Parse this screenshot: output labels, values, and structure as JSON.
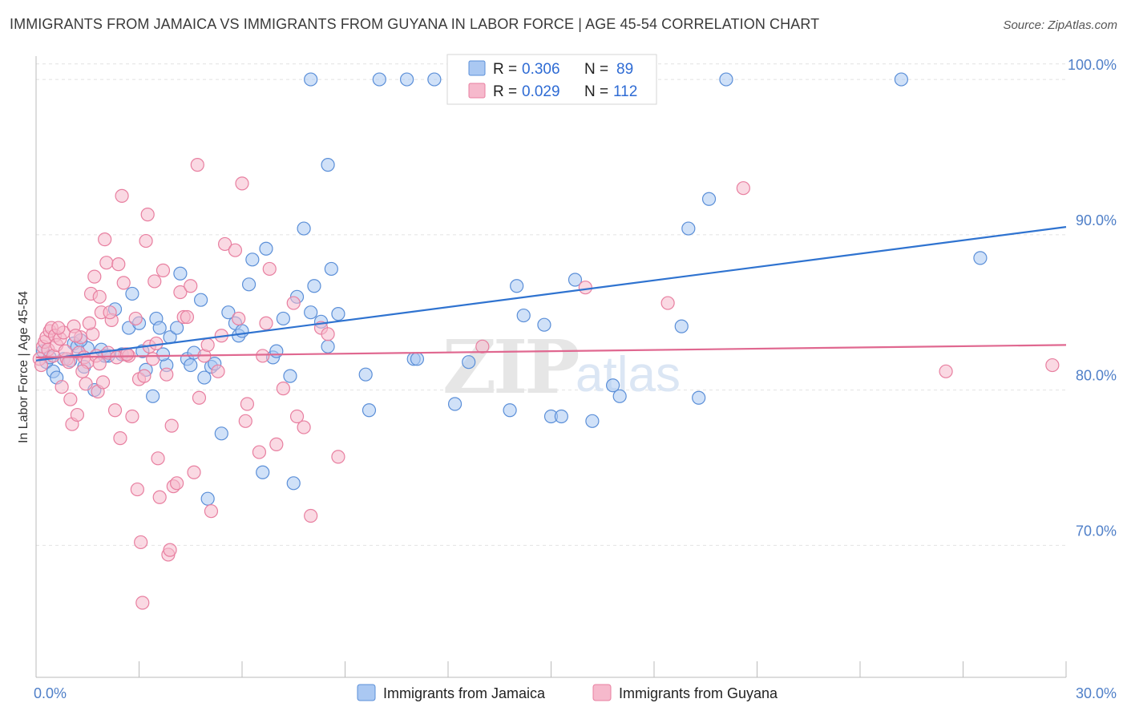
{
  "title": "IMMIGRANTS FROM JAMAICA VS IMMIGRANTS FROM GUYANA IN LABOR FORCE | AGE 45-54 CORRELATION CHART",
  "source": "Source: ZipAtlas.com",
  "watermark": {
    "zip": "ZIP",
    "atlas": "atlas"
  },
  "colors": {
    "jamaica_fill": "#aac8f2",
    "jamaica_stroke": "#5b8fd8",
    "jamaica_line": "#2f73d0",
    "guyana_fill": "#f6b9cc",
    "guyana_stroke": "#e87fa0",
    "guyana_line": "#e06890",
    "tick_text": "#4f7fc8",
    "grid": "#e2e2e2"
  },
  "legend": {
    "rows": [
      {
        "r_label": "R =",
        "r_value": "0.306",
        "n_label": "N =",
        "n_value": "89"
      },
      {
        "r_label": "R =",
        "r_value": "0.029",
        "n_label": "N =",
        "n_value": "112"
      }
    ]
  },
  "chart_data": {
    "type": "scatter",
    "title": "IMMIGRANTS FROM JAMAICA VS IMMIGRANTS FROM GUYANA IN LABOR FORCE | AGE 45-54 CORRELATION CHART",
    "xlabel": "",
    "ylabel": "In Labor Force | Age 45-54",
    "xlim": [
      0,
      30
    ],
    "ylim": [
      61.5,
      101.5
    ],
    "x_tick_labels": [
      "0.0%",
      "30.0%"
    ],
    "y_ticks": [
      70,
      80,
      90,
      100
    ],
    "y_tick_labels": [
      "70.0%",
      "80.0%",
      "90.0%",
      "100.0%"
    ],
    "grid": true,
    "legend_placement": "top-center",
    "series": [
      {
        "name": "Immigrants from Jamaica",
        "trend": {
          "x": [
            0,
            30
          ],
          "y": [
            81.9,
            90.5
          ]
        },
        "points": [
          [
            0.2,
            82.5
          ],
          [
            0.3,
            81.8
          ],
          [
            0.4,
            82.1
          ],
          [
            0.5,
            81.2
          ],
          [
            0.6,
            80.8
          ],
          [
            0.8,
            82.0
          ],
          [
            1.0,
            81.9
          ],
          [
            1.1,
            83.0
          ],
          [
            1.2,
            82.8
          ],
          [
            1.4,
            81.5
          ],
          [
            1.5,
            82.7
          ],
          [
            1.7,
            80.0
          ],
          [
            1.9,
            82.6
          ],
          [
            2.1,
            82.2
          ],
          [
            2.3,
            85.2
          ],
          [
            2.5,
            82.3
          ],
          [
            2.7,
            84.0
          ],
          [
            2.8,
            86.2
          ],
          [
            3.0,
            84.3
          ],
          [
            3.1,
            82.5
          ],
          [
            3.2,
            81.3
          ],
          [
            3.4,
            79.6
          ],
          [
            3.5,
            84.6
          ],
          [
            3.6,
            84.0
          ],
          [
            3.8,
            81.6
          ],
          [
            3.9,
            83.4
          ],
          [
            4.1,
            84.0
          ],
          [
            4.2,
            87.5
          ],
          [
            4.4,
            82.0
          ],
          [
            4.5,
            81.6
          ],
          [
            4.6,
            82.4
          ],
          [
            4.8,
            85.8
          ],
          [
            4.9,
            80.8
          ],
          [
            5.1,
            81.5
          ],
          [
            5.2,
            81.7
          ],
          [
            5.4,
            77.2
          ],
          [
            5.6,
            85.0
          ],
          [
            5.8,
            84.3
          ],
          [
            5.9,
            83.5
          ],
          [
            6.0,
            83.8
          ],
          [
            6.2,
            86.8
          ],
          [
            6.3,
            88.4
          ],
          [
            6.6,
            74.7
          ],
          [
            6.7,
            89.1
          ],
          [
            6.9,
            82.1
          ],
          [
            7.0,
            82.5
          ],
          [
            7.2,
            84.6
          ],
          [
            7.4,
            80.9
          ],
          [
            7.5,
            74.0
          ],
          [
            7.6,
            86.0
          ],
          [
            7.8,
            90.4
          ],
          [
            8.0,
            85.0
          ],
          [
            8.1,
            86.7
          ],
          [
            8.3,
            84.4
          ],
          [
            8.5,
            82.8
          ],
          [
            8.6,
            87.8
          ],
          [
            8.8,
            84.9
          ],
          [
            8.5,
            94.5
          ],
          [
            8.0,
            100.0
          ],
          [
            9.6,
            81.0
          ],
          [
            9.7,
            78.7
          ],
          [
            10.0,
            100.0
          ],
          [
            10.8,
            100.0
          ],
          [
            11.6,
            100.0
          ],
          [
            11.0,
            82.0
          ],
          [
            11.1,
            82.0
          ],
          [
            12.2,
            79.1
          ],
          [
            12.6,
            81.8
          ],
          [
            13.8,
            78.7
          ],
          [
            14.0,
            86.7
          ],
          [
            14.2,
            84.8
          ],
          [
            14.8,
            84.2
          ],
          [
            15.0,
            78.3
          ],
          [
            15.3,
            78.3
          ],
          [
            15.7,
            87.1
          ],
          [
            16.2,
            78.0
          ],
          [
            16.8,
            80.3
          ],
          [
            17.0,
            79.6
          ],
          [
            18.8,
            84.1
          ],
          [
            19.0,
            90.4
          ],
          [
            19.3,
            79.5
          ],
          [
            19.6,
            92.3
          ],
          [
            20.1,
            100.0
          ],
          [
            25.2,
            100.0
          ],
          [
            27.5,
            88.5
          ],
          [
            1.3,
            83.2
          ],
          [
            2.0,
            82.2
          ],
          [
            3.7,
            82.3
          ],
          [
            5.0,
            73.0
          ]
        ]
      },
      {
        "name": "Immigrants from Guyana",
        "trend": {
          "x": [
            0,
            30
          ],
          "y": [
            82.1,
            82.9
          ]
        },
        "points": [
          [
            0.1,
            82.0
          ],
          [
            0.15,
            81.6
          ],
          [
            0.2,
            82.8
          ],
          [
            0.25,
            83.1
          ],
          [
            0.3,
            83.4
          ],
          [
            0.35,
            82.6
          ],
          [
            0.4,
            83.8
          ],
          [
            0.45,
            84.0
          ],
          [
            0.5,
            82.2
          ],
          [
            0.55,
            83.5
          ],
          [
            0.6,
            82.9
          ],
          [
            0.7,
            83.3
          ],
          [
            0.75,
            80.2
          ],
          [
            0.8,
            83.7
          ],
          [
            0.9,
            82.0
          ],
          [
            1.0,
            79.4
          ],
          [
            1.05,
            77.8
          ],
          [
            1.1,
            84.1
          ],
          [
            1.2,
            78.4
          ],
          [
            1.25,
            82.4
          ],
          [
            1.3,
            83.4
          ],
          [
            1.4,
            82.1
          ],
          [
            1.45,
            80.4
          ],
          [
            1.5,
            81.8
          ],
          [
            1.6,
            86.2
          ],
          [
            1.65,
            83.6
          ],
          [
            1.7,
            87.3
          ],
          [
            1.75,
            82.2
          ],
          [
            1.8,
            79.9
          ],
          [
            1.85,
            81.7
          ],
          [
            1.9,
            85.0
          ],
          [
            1.95,
            80.5
          ],
          [
            2.0,
            89.7
          ],
          [
            2.05,
            88.2
          ],
          [
            2.1,
            82.4
          ],
          [
            2.2,
            84.5
          ],
          [
            2.3,
            78.7
          ],
          [
            2.4,
            88.1
          ],
          [
            2.45,
            76.9
          ],
          [
            2.5,
            92.5
          ],
          [
            2.6,
            82.3
          ],
          [
            2.7,
            82.2
          ],
          [
            2.8,
            78.3
          ],
          [
            2.9,
            84.6
          ],
          [
            2.95,
            73.6
          ],
          [
            3.0,
            80.7
          ],
          [
            3.05,
            70.2
          ],
          [
            3.1,
            66.3
          ],
          [
            3.2,
            89.6
          ],
          [
            3.25,
            91.3
          ],
          [
            3.3,
            82.8
          ],
          [
            3.4,
            82.0
          ],
          [
            3.45,
            87.0
          ],
          [
            3.55,
            75.6
          ],
          [
            3.6,
            73.1
          ],
          [
            3.7,
            87.7
          ],
          [
            3.8,
            81.0
          ],
          [
            3.85,
            69.4
          ],
          [
            3.9,
            69.7
          ],
          [
            3.95,
            77.7
          ],
          [
            4.0,
            73.8
          ],
          [
            4.1,
            74.0
          ],
          [
            4.2,
            86.3
          ],
          [
            4.3,
            84.7
          ],
          [
            4.5,
            86.7
          ],
          [
            4.6,
            74.7
          ],
          [
            4.7,
            94.5
          ],
          [
            4.75,
            79.5
          ],
          [
            4.9,
            82.2
          ],
          [
            5.0,
            82.9
          ],
          [
            5.1,
            72.2
          ],
          [
            5.3,
            81.2
          ],
          [
            5.4,
            83.5
          ],
          [
            5.5,
            89.4
          ],
          [
            5.8,
            89.0
          ],
          [
            5.9,
            84.6
          ],
          [
            6.0,
            93.3
          ],
          [
            6.1,
            78.0
          ],
          [
            6.15,
            79.1
          ],
          [
            6.5,
            76.0
          ],
          [
            6.6,
            82.2
          ],
          [
            6.7,
            84.3
          ],
          [
            6.8,
            87.8
          ],
          [
            7.0,
            76.5
          ],
          [
            7.2,
            80.1
          ],
          [
            7.5,
            85.6
          ],
          [
            7.6,
            78.3
          ],
          [
            7.8,
            77.6
          ],
          [
            8.0,
            71.9
          ],
          [
            8.3,
            84.0
          ],
          [
            8.5,
            83.6
          ],
          [
            8.8,
            75.7
          ],
          [
            13.0,
            82.8
          ],
          [
            16.0,
            86.6
          ],
          [
            18.4,
            85.6
          ],
          [
            20.6,
            93.0
          ],
          [
            26.5,
            81.2
          ],
          [
            29.6,
            81.6
          ],
          [
            0.65,
            84.0
          ],
          [
            1.15,
            83.5
          ],
          [
            2.55,
            86.9
          ],
          [
            2.15,
            85.0
          ],
          [
            3.15,
            80.9
          ],
          [
            1.35,
            81.2
          ],
          [
            0.85,
            82.5
          ],
          [
            2.35,
            82.1
          ],
          [
            1.55,
            84.3
          ],
          [
            3.5,
            83.0
          ],
          [
            4.4,
            84.7
          ],
          [
            2.65,
            82.3
          ],
          [
            0.95,
            81.8
          ],
          [
            1.85,
            86.0
          ]
        ]
      }
    ]
  }
}
